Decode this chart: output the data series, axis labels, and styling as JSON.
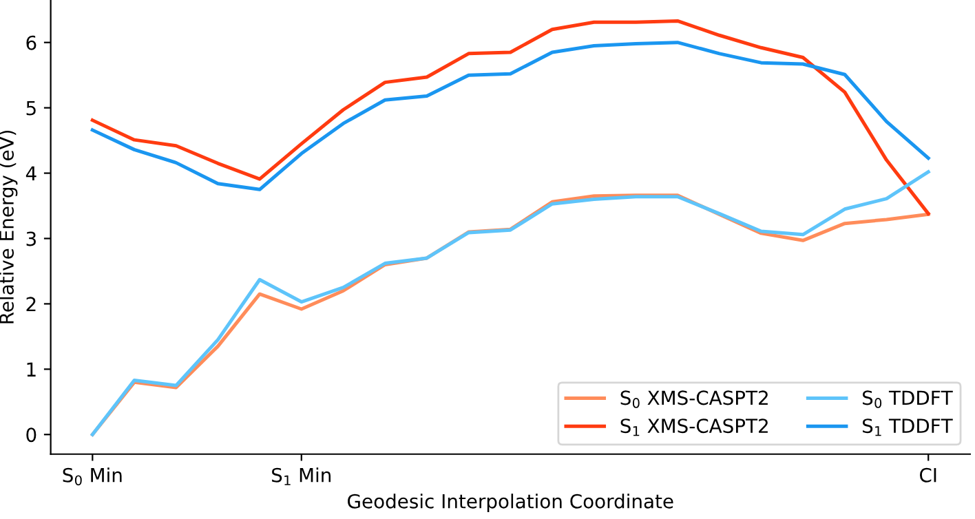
{
  "chart_data": {
    "type": "line",
    "xlabel": "Geodesic Interpolation Coordinate",
    "ylabel": "Relative Energy (eV)",
    "categories": [
      "S$_{0}$ Min",
      null,
      null,
      null,
      null,
      "S$_{1}$ Min",
      null,
      null,
      null,
      null,
      null,
      null,
      null,
      null,
      null,
      null,
      null,
      null,
      null,
      null,
      "CI"
    ],
    "ylim": [
      -0.3,
      6.65
    ],
    "yticks": [
      0,
      1,
      2,
      3,
      4,
      5,
      6
    ],
    "series": [
      {
        "name": "S$_{0}$ XMS-CASPT2",
        "color": "#ff8c5a",
        "values": [
          0,
          0.8,
          0.72,
          1.35,
          2.15,
          1.92,
          2.2,
          2.6,
          2.7,
          3.1,
          3.14,
          3.56,
          3.65,
          3.66,
          3.66,
          3.37,
          3.08,
          2.97,
          3.23,
          3.29,
          3.37
        ]
      },
      {
        "name": "S$_{1}$ XMS-CASPT2",
        "color": "#ff3b10",
        "values": [
          4.81,
          4.51,
          4.42,
          4.15,
          3.91,
          4.45,
          4.97,
          5.39,
          5.47,
          5.83,
          5.85,
          6.2,
          6.31,
          6.31,
          6.33,
          6.11,
          5.92,
          5.77,
          5.24,
          4.2,
          3.38
        ]
      },
      {
        "name": "S$_{0}$ TDDFT",
        "color": "#5ec4fa",
        "values": [
          0,
          0.83,
          0.75,
          1.45,
          2.37,
          2.03,
          2.25,
          2.62,
          2.7,
          3.09,
          3.13,
          3.53,
          3.6,
          3.64,
          3.64,
          3.38,
          3.11,
          3.06,
          3.45,
          3.61,
          4.02
        ]
      },
      {
        "name": "S$_{1}$ TDDFT",
        "color": "#1a96f0",
        "values": [
          4.66,
          4.36,
          4.16,
          3.84,
          3.75,
          4.3,
          4.76,
          5.12,
          5.18,
          5.5,
          5.52,
          5.85,
          5.95,
          5.98,
          6.0,
          5.83,
          5.69,
          5.67,
          5.51,
          4.79,
          4.23
        ]
      }
    ],
    "legend": "lower right",
    "grid": false,
    "marker": "none",
    "line_style": "solid"
  }
}
